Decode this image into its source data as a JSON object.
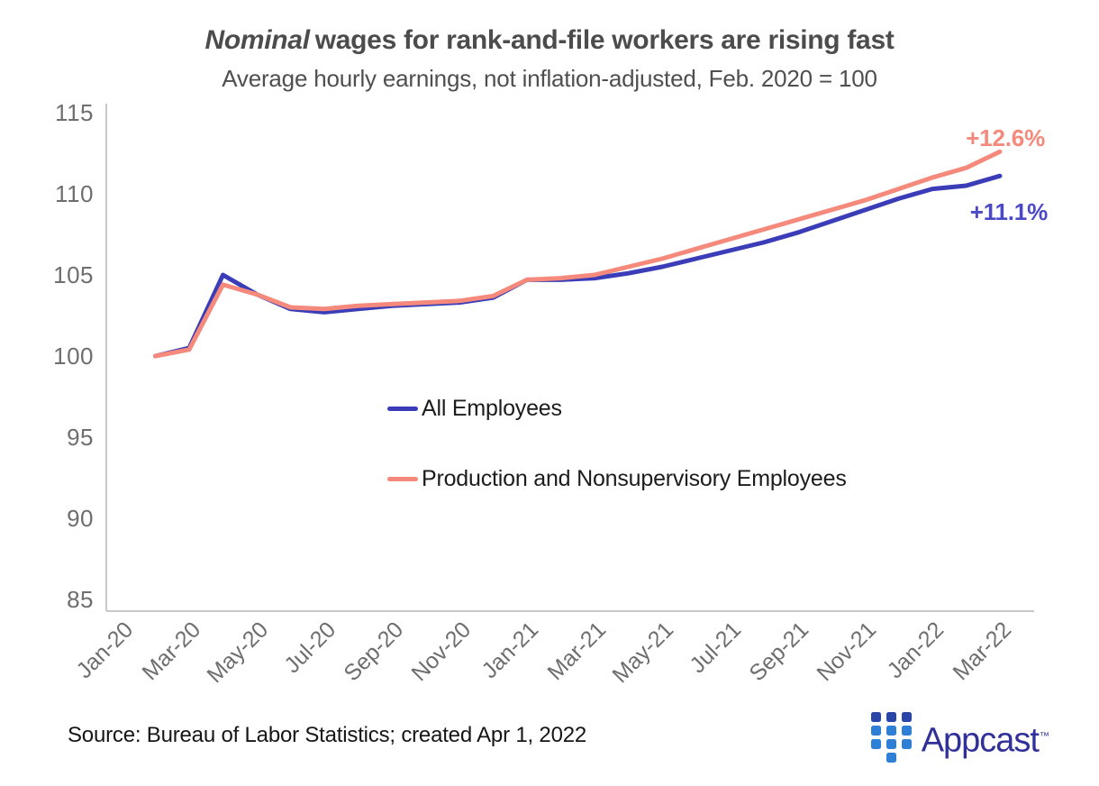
{
  "header": {
    "title_emphasis": "Nominal",
    "title_rest": "wages for rank-and-file workers are rising fast",
    "subtitle": "Average hourly earnings, not inflation-adjusted, Feb. 2020 = 100"
  },
  "footer": {
    "source_note": "Source: Bureau of Labor Statistics; created Apr 1, 2022",
    "brand": {
      "wordmark": "Appcast",
      "trademark": "™"
    }
  },
  "colors": {
    "title_text": "#4c4c4c",
    "axis_line": "#c8c8c8",
    "tick_text": "#6e6e6e",
    "legend_text": "#1c1c1c",
    "source_text": "#161616",
    "wordmark": "#31309b",
    "logo_navy": "#2945a8",
    "logo_azure": "#2e7fd6"
  },
  "logo_mark_columns": [
    [
      "#2945a8",
      "#2e7fd6",
      "#2e7fd6"
    ],
    [
      "#2945a8",
      "#2e7fd6",
      "#2e7fd6",
      "#2e7fd6"
    ],
    [
      "#2945a8",
      "#2e7fd6",
      "#2e7fd6"
    ]
  ],
  "chart_data": {
    "type": "line",
    "title": "Nominal wages for rank-and-file workers are rising fast",
    "subtitle": "Average hourly earnings, not inflation-adjusted, Feb. 2020 = 100",
    "xlabel": "",
    "ylabel": "",
    "ylim": [
      85,
      115
    ],
    "yticks": [
      85,
      90,
      95,
      100,
      105,
      110,
      115
    ],
    "grid": false,
    "legend_position": "inside-center-left",
    "x_categories": [
      "Jan-20",
      "Feb-20",
      "Mar-20",
      "Apr-20",
      "May-20",
      "Jun-20",
      "Jul-20",
      "Aug-20",
      "Sep-20",
      "Oct-20",
      "Nov-20",
      "Dec-20",
      "Jan-21",
      "Feb-21",
      "Mar-21",
      "Apr-21",
      "May-21",
      "Jun-21",
      "Jul-21",
      "Aug-21",
      "Sep-21",
      "Oct-21",
      "Nov-21",
      "Dec-21",
      "Jan-22",
      "Feb-22",
      "Mar-22"
    ],
    "x_tick_labels": [
      "Jan-20",
      "Mar-20",
      "May-20",
      "Jul-20",
      "Sep-20",
      "Nov-20",
      "Jan-21",
      "Mar-21",
      "May-21",
      "Jul-21",
      "Sep-21",
      "Nov-21",
      "Jan-22",
      "Mar-22"
    ],
    "series": [
      {
        "name": "All Employees",
        "color": "#3b3db8",
        "annotation_color": "#4b49c6",
        "end_annotation": "+11.1%",
        "values": [
          null,
          100.0,
          100.5,
          105.0,
          103.8,
          102.9,
          102.7,
          102.9,
          103.1,
          103.2,
          103.3,
          103.6,
          104.7,
          104.7,
          104.8,
          105.1,
          105.5,
          106.0,
          106.5,
          107.0,
          107.6,
          108.3,
          109.0,
          109.7,
          110.3,
          110.5,
          111.1
        ]
      },
      {
        "name": "Production and Nonsupervisory Employees",
        "color": "#f4897c",
        "annotation_color": "#f4897c",
        "end_annotation": "+12.6%",
        "values": [
          null,
          100.0,
          100.4,
          104.4,
          103.8,
          103.0,
          102.9,
          103.1,
          103.2,
          103.3,
          103.4,
          103.7,
          104.7,
          104.8,
          105.0,
          105.5,
          106.0,
          106.6,
          107.2,
          107.8,
          108.4,
          109.0,
          109.6,
          110.3,
          111.0,
          111.6,
          112.6
        ]
      }
    ]
  }
}
